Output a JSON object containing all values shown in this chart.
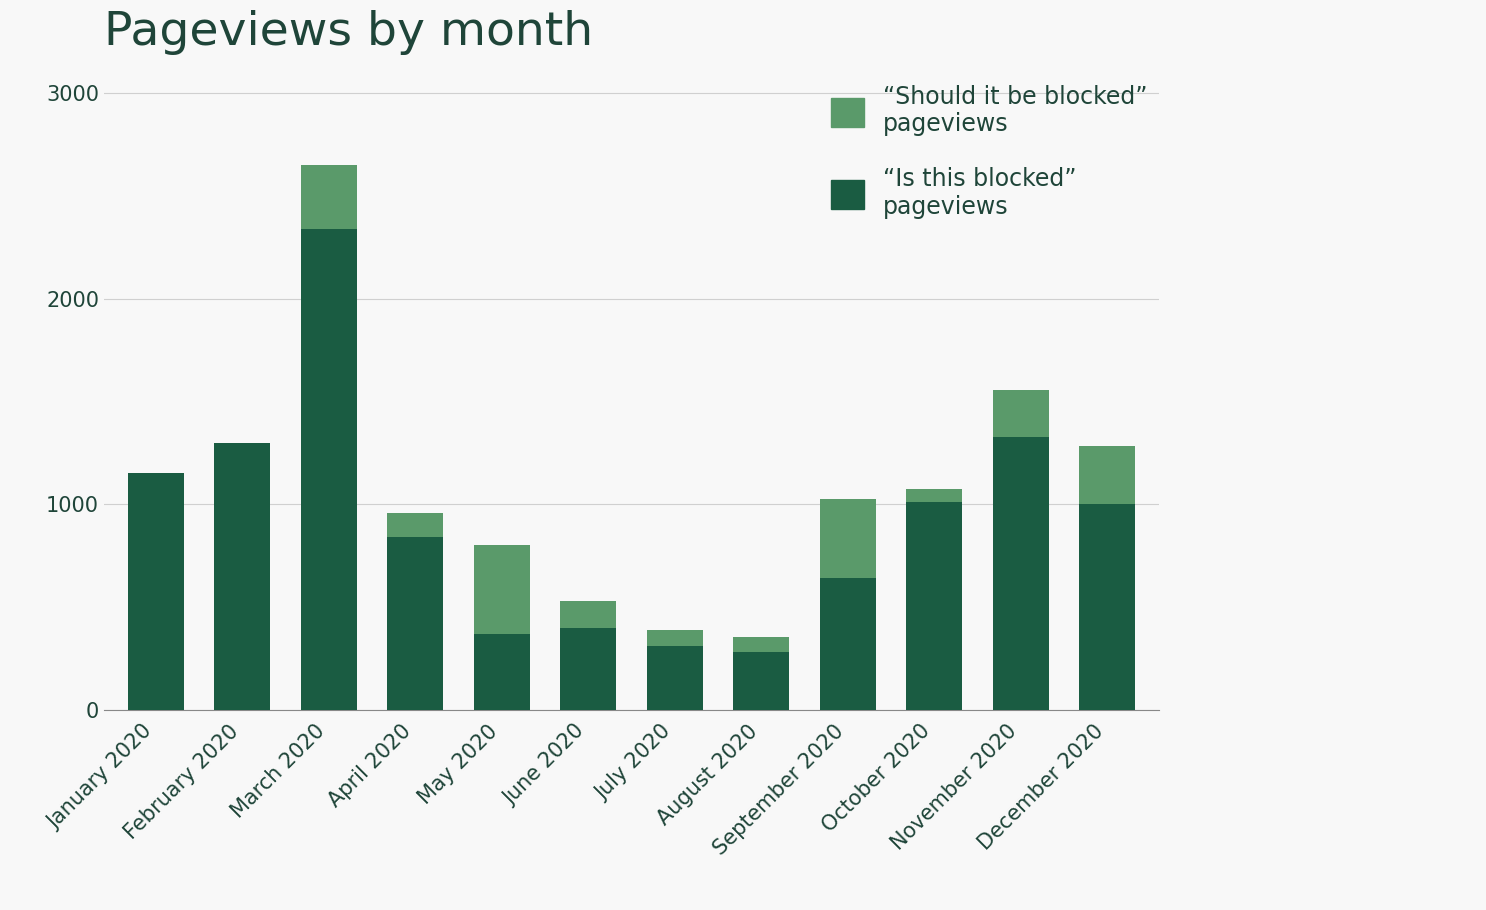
{
  "title": "Pageviews by month",
  "months": [
    "January 2020",
    "February 2020",
    "March 2020",
    "April 2020",
    "May 2020",
    "June 2020",
    "July 2020",
    "August 2020",
    "September 2020",
    "October 2020",
    "November 2020",
    "December 2020"
  ],
  "should_blocked": [
    0,
    0,
    310,
    120,
    430,
    130,
    80,
    75,
    385,
    65,
    225,
    285
  ],
  "is_blocked": [
    1150,
    1300,
    2340,
    840,
    370,
    400,
    310,
    280,
    640,
    1010,
    1330,
    1000
  ],
  "color_should": "#5a9a6a",
  "color_is": "#1a5c42",
  "title_color": "#1f4539",
  "label_color": "#1f4539",
  "axis_color": "#cccccc",
  "background_color": "#f8f8f8",
  "ylim": [
    0,
    3100
  ],
  "yticks": [
    0,
    1000,
    2000,
    3000
  ],
  "legend_label_should": "“Should it be blocked”\npageviews",
  "legend_label_is": "“Is this blocked”\npageviews",
  "title_fontsize": 34,
  "tick_fontsize": 15,
  "legend_fontsize": 17,
  "bar_width": 0.65
}
